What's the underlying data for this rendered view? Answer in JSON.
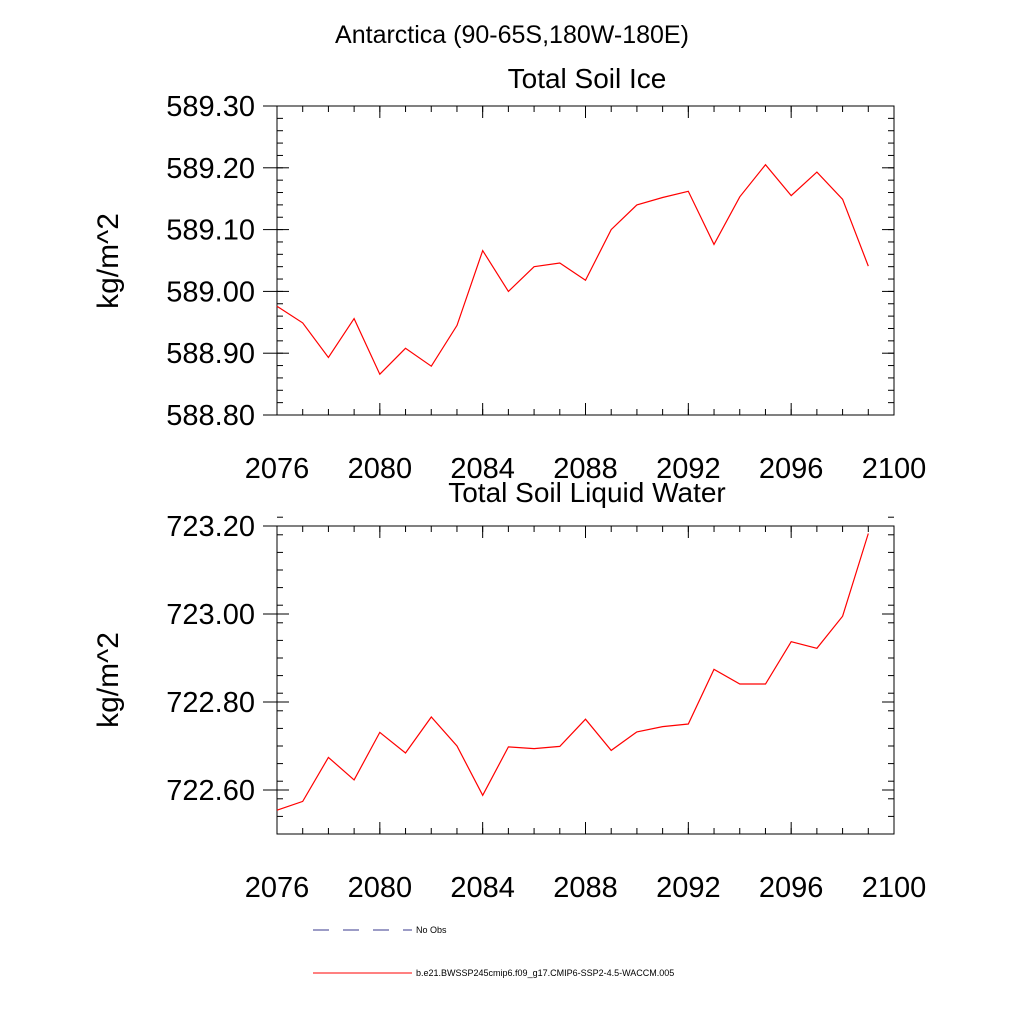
{
  "suptitle": "Antarctica (90-65S,180W-180E)",
  "colors": {
    "series": "#ff0000",
    "obs": "#3a3a8c",
    "axis": "#000000"
  },
  "legend": [
    {
      "label": "No Obs",
      "style": "dashed"
    },
    {
      "label": "b.e21.BWSSP245cmip6.f09_g17.CMIP6-SSP2-4.5-WACCM.005",
      "style": "solid"
    }
  ],
  "chart_data": [
    {
      "type": "line",
      "title": "Total Soil Ice",
      "xlabel": "",
      "ylabel": "kg/m^2",
      "xlim": [
        2076,
        2100
      ],
      "ylim": [
        588.8,
        589.3
      ],
      "xticks": [
        "2076",
        "2080",
        "2084",
        "2088",
        "2092",
        "2096",
        "2100"
      ],
      "yticks": [
        "588.80",
        "588.90",
        "589.00",
        "589.10",
        "589.20",
        "589.30"
      ],
      "x": [
        2076,
        2077,
        2078,
        2079,
        2080,
        2081,
        2082,
        2083,
        2084,
        2085,
        2086,
        2087,
        2088,
        2089,
        2090,
        2091,
        2092,
        2093,
        2094,
        2095,
        2096,
        2097,
        2098,
        2099
      ],
      "series": [
        {
          "name": "b.e21.BWSSP245cmip6.f09_g17.CMIP6-SSP2-4.5-WACCM.005",
          "values": [
            588.976,
            588.949,
            588.893,
            588.956,
            588.866,
            588.908,
            588.879,
            588.945,
            589.066,
            589.0,
            589.04,
            589.046,
            589.018,
            589.1,
            589.14,
            589.152,
            589.162,
            589.076,
            589.153,
            589.205,
            589.155,
            589.193,
            589.149,
            589.041
          ]
        }
      ]
    },
    {
      "type": "line",
      "title": "Total Soil Liquid Water",
      "xlabel": "",
      "ylabel": "kg/m^2",
      "xlim": [
        2076,
        2100
      ],
      "ylim": [
        722.5,
        723.2
      ],
      "xticks": [
        "2076",
        "2080",
        "2084",
        "2088",
        "2092",
        "2096",
        "2100"
      ],
      "yticks": [
        "722.60",
        "722.80",
        "723.00",
        "723.20"
      ],
      "x": [
        2076,
        2077,
        2078,
        2079,
        2080,
        2081,
        2082,
        2083,
        2084,
        2085,
        2086,
        2087,
        2088,
        2089,
        2090,
        2091,
        2092,
        2093,
        2094,
        2095,
        2096,
        2097,
        2098,
        2099
      ],
      "series": [
        {
          "name": "b.e21.BWSSP245cmip6.f09_g17.CMIP6-SSP2-4.5-WACCM.005",
          "values": [
            722.554,
            722.574,
            722.674,
            722.623,
            722.731,
            722.684,
            722.766,
            722.7,
            722.588,
            722.698,
            722.694,
            722.699,
            722.761,
            722.69,
            722.732,
            722.744,
            722.75,
            722.874,
            722.841,
            722.841,
            722.937,
            722.922,
            722.995,
            723.183
          ]
        }
      ]
    }
  ]
}
